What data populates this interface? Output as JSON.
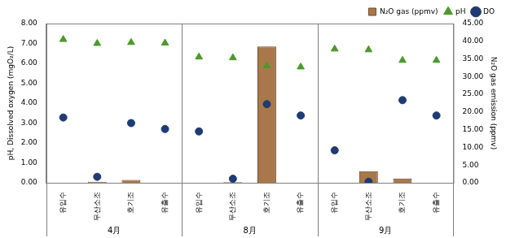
{
  "chart_data": {
    "type": "bar",
    "groups": [
      {
        "name": "4月",
        "categories": [
          "유입수",
          "무산소조",
          "호기조",
          "유출수"
        ]
      },
      {
        "name": "8月",
        "categories": [
          "유입수",
          "무산소조",
          "호기조",
          "유출수"
        ]
      },
      {
        "name": "9月",
        "categories": [
          "유입수",
          "무산소조",
          "호기조",
          "유출수"
        ]
      }
    ],
    "y_label": "pH, Dissolved oxygen (mgO₂/L)",
    "y2_label": "N₂O gas emission (ppmv)",
    "ylim": [
      0,
      8
    ],
    "yticks": [
      {
        "value": 0,
        "label": "0.00"
      },
      {
        "value": 1,
        "label": "1.00"
      },
      {
        "value": 2,
        "label": "2.00"
      },
      {
        "value": 3,
        "label": "3.00"
      },
      {
        "value": 4,
        "label": "4.00"
      },
      {
        "value": 5,
        "label": "5.00"
      },
      {
        "value": 6,
        "label": "6.00"
      },
      {
        "value": 7,
        "label": "7.00"
      },
      {
        "value": 8,
        "label": "8.00"
      }
    ],
    "y2lim": [
      0,
      45
    ],
    "y2ticks": [
      {
        "value": 0,
        "label": "0.00"
      },
      {
        "value": 5,
        "label": "5.00"
      },
      {
        "value": 10,
        "label": "10.00"
      },
      {
        "value": 15,
        "label": "15.00"
      },
      {
        "value": 20,
        "label": "20.00"
      },
      {
        "value": 25,
        "label": "25.00"
      },
      {
        "value": 30,
        "label": "30.00"
      },
      {
        "value": 35,
        "label": "35.00"
      },
      {
        "value": 40,
        "label": "40.00"
      },
      {
        "value": 45,
        "label": "45.00"
      }
    ],
    "grid": false,
    "legend": "top right",
    "series": [
      {
        "name": "N₂O gas (ppmv)",
        "type": "bar",
        "axis": "y2",
        "color": "#a9784a",
        "values": [
          0,
          0.3,
          0.8,
          0,
          0,
          0.2,
          38.5,
          0,
          0,
          3.3,
          1.2,
          0
        ]
      },
      {
        "name": "pH",
        "type": "line",
        "marker": "triangle",
        "line_style": "none",
        "color": "#4c9a2a",
        "values": [
          7.2,
          7.0,
          7.05,
          7.02,
          6.32,
          6.28,
          5.88,
          5.82,
          6.72,
          6.68,
          6.15,
          6.15
        ]
      },
      {
        "name": "DO",
        "type": "line",
        "marker": "circle",
        "line_style": "none",
        "color": "#1f3b73",
        "values": [
          3.28,
          0.3,
          3.0,
          2.7,
          2.58,
          0.2,
          3.95,
          3.38,
          1.63,
          0.05,
          4.15,
          3.38
        ]
      }
    ]
  }
}
